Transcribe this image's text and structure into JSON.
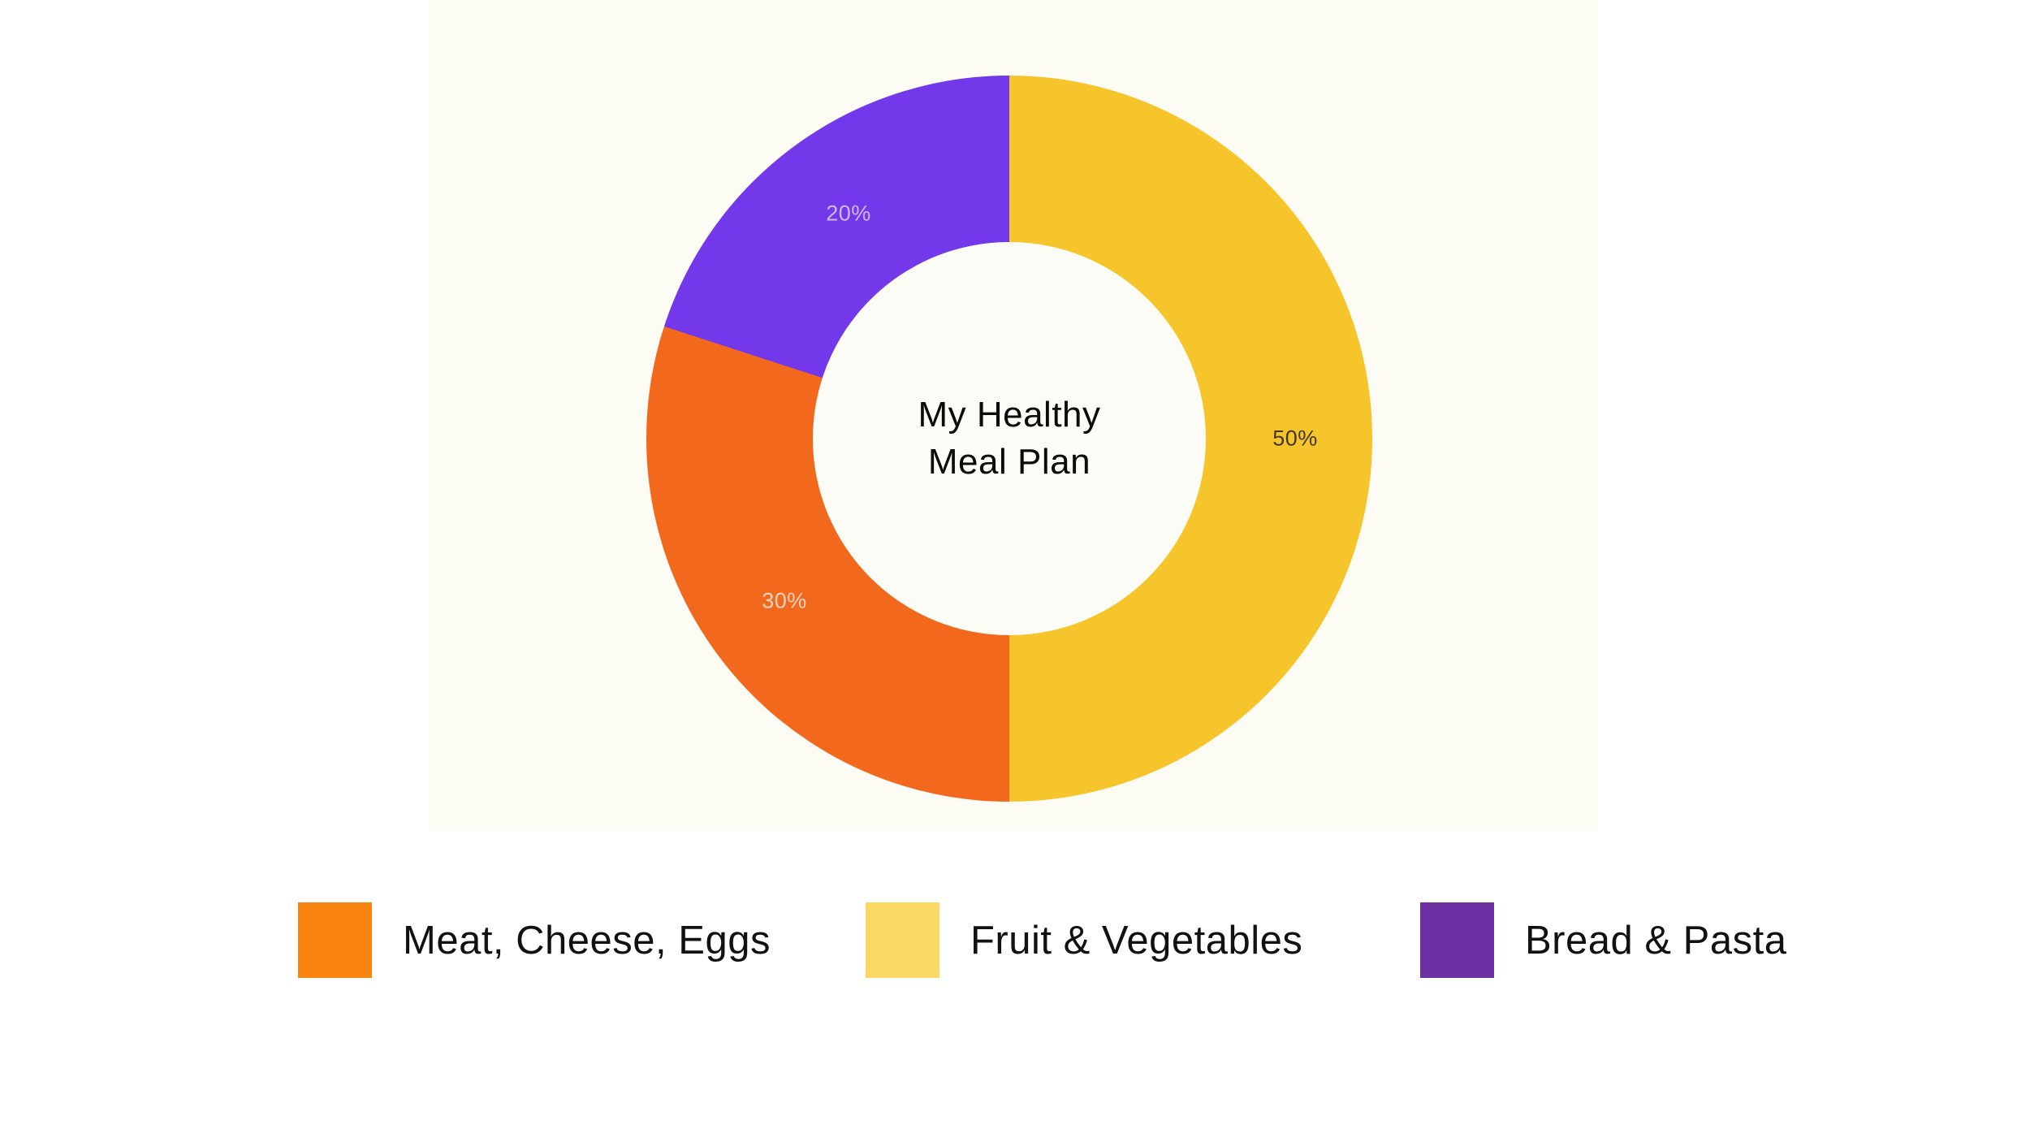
{
  "chart_data": {
    "type": "pie",
    "variant": "donut",
    "title": "My Healthy Meal Plan",
    "title_lines": [
      "My Healthy",
      "Meal Plan"
    ],
    "legend_position": "bottom",
    "start_angle_deg": 0,
    "slices": [
      {
        "label": "Fruit & Vegetables",
        "value": 50,
        "pct_label": "50%",
        "color": "#F5C52B",
        "pct_label_color": "#42371A"
      },
      {
        "label": "Meat, Cheese, Eggs",
        "value": 30,
        "pct_label": "30%",
        "color": "#F2691E",
        "pct_label_color": "#F8D4BF"
      },
      {
        "label": "Bread & Pasta",
        "value": 20,
        "pct_label": "20%",
        "color": "#7338EA",
        "pct_label_color": "#CDB9F4"
      }
    ]
  },
  "legend": {
    "items": [
      {
        "label": "Meat, Cheese, Eggs",
        "color": "#F9830F"
      },
      {
        "label": "Fruit & Vegetables",
        "color": "#FBD763"
      },
      {
        "label": "Bread & Pasta",
        "color": "#6E2FA3"
      }
    ]
  },
  "colors": {
    "page_background": "#FFFFFF",
    "panel_background": "#FCFCF4",
    "hole_background": "#FCFCF6",
    "title_text": "#0B0B0B",
    "legend_text": "#111111"
  }
}
